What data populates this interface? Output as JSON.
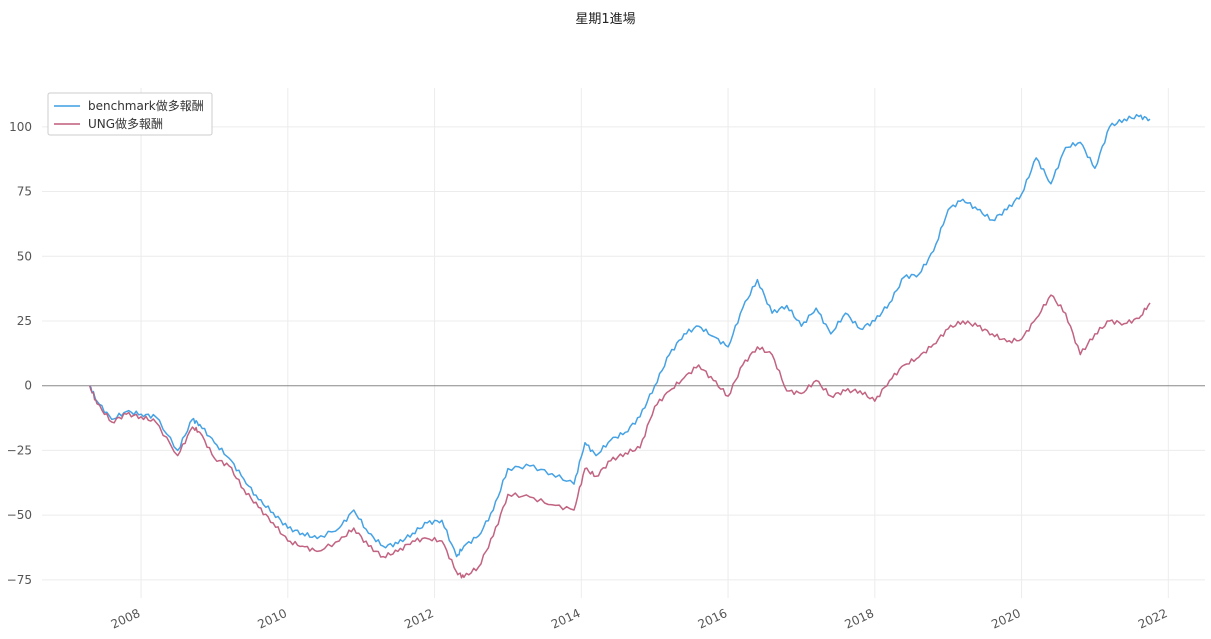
{
  "chart_data": {
    "type": "line",
    "title": "星期1進場",
    "xlabel": "",
    "ylabel": "",
    "xlim": [
      2006.65,
      2022.5
    ],
    "ylim": [
      -82,
      115
    ],
    "grid": true,
    "legend_position": "top-left",
    "x_ticks": [
      {
        "label": "2008",
        "value": 2008
      },
      {
        "label": "2010",
        "value": 2010
      },
      {
        "label": "2012",
        "value": 2012
      },
      {
        "label": "2014",
        "value": 2014
      },
      {
        "label": "2016",
        "value": 2016
      },
      {
        "label": "2018",
        "value": 2018
      },
      {
        "label": "2020",
        "value": 2020
      },
      {
        "label": "2022",
        "value": 2022
      }
    ],
    "y_ticks": [
      {
        "label": "100",
        "value": 100
      },
      {
        "label": "75",
        "value": 75
      },
      {
        "label": "50",
        "value": 50
      },
      {
        "label": "25",
        "value": 25
      },
      {
        "label": "0",
        "value": 0
      },
      {
        "label": "−25",
        "value": -25
      },
      {
        "label": "−50",
        "value": -50
      },
      {
        "label": "−75",
        "value": -75
      }
    ],
    "series": [
      {
        "name": "benchmark做多報酬",
        "color": "#3b9de3",
        "x": [
          2007.3,
          2007.4,
          2007.6,
          2007.8,
          2008.0,
          2008.2,
          2008.5,
          2008.7,
          2008.8,
          2009.0,
          2009.2,
          2009.4,
          2009.6,
          2009.8,
          2010.0,
          2010.2,
          2010.4,
          2010.7,
          2010.9,
          2011.1,
          2011.3,
          2011.5,
          2011.7,
          2011.9,
          2012.1,
          2012.3,
          2012.4,
          2012.6,
          2012.8,
          2013.0,
          2013.3,
          2013.6,
          2013.9,
          2014.05,
          2014.2,
          2014.4,
          2014.6,
          2014.8,
          2015.0,
          2015.2,
          2015.4,
          2015.6,
          2015.8,
          2016.0,
          2016.2,
          2016.4,
          2016.6,
          2016.8,
          2017.0,
          2017.2,
          2017.4,
          2017.6,
          2017.8,
          2018.0,
          2018.2,
          2018.4,
          2018.6,
          2018.8,
          2019.0,
          2019.2,
          2019.4,
          2019.6,
          2019.8,
          2020.0,
          2020.2,
          2020.4,
          2020.6,
          2020.8,
          2021.0,
          2021.2,
          2021.4,
          2021.6,
          2021.75
        ],
        "y": [
          0,
          -6,
          -13,
          -10,
          -11,
          -12,
          -25,
          -13,
          -15,
          -22,
          -28,
          -36,
          -44,
          -49,
          -55,
          -57,
          -59,
          -55,
          -48,
          -57,
          -62,
          -61,
          -57,
          -53,
          -52,
          -66,
          -62,
          -58,
          -48,
          -32,
          -31,
          -34,
          -38,
          -22,
          -27,
          -21,
          -18,
          -12,
          0,
          12,
          20,
          23,
          19,
          15,
          30,
          41,
          28,
          31,
          23,
          30,
          20,
          28,
          22,
          25,
          32,
          42,
          43,
          52,
          68,
          72,
          68,
          64,
          68,
          74,
          88,
          78,
          92,
          94,
          84,
          100,
          103,
          104,
          103
        ]
      },
      {
        "name": "UNG做多報酬",
        "color": "#bf5b7a",
        "x": [
          2007.3,
          2007.4,
          2007.6,
          2007.8,
          2008.0,
          2008.2,
          2008.5,
          2008.7,
          2008.8,
          2009.0,
          2009.2,
          2009.4,
          2009.6,
          2009.8,
          2010.0,
          2010.2,
          2010.4,
          2010.7,
          2010.9,
          2011.1,
          2011.3,
          2011.5,
          2011.7,
          2011.9,
          2012.1,
          2012.3,
          2012.4,
          2012.6,
          2012.8,
          2013.0,
          2013.3,
          2013.6,
          2013.9,
          2014.05,
          2014.2,
          2014.4,
          2014.6,
          2014.8,
          2015.0,
          2015.2,
          2015.4,
          2015.6,
          2015.8,
          2016.0,
          2016.2,
          2016.4,
          2016.6,
          2016.8,
          2017.0,
          2017.2,
          2017.4,
          2017.6,
          2017.8,
          2018.0,
          2018.2,
          2018.4,
          2018.6,
          2018.8,
          2019.0,
          2019.2,
          2019.4,
          2019.6,
          2019.8,
          2020.0,
          2020.2,
          2020.4,
          2020.6,
          2020.8,
          2021.0,
          2021.2,
          2021.4,
          2021.6,
          2021.75
        ],
        "y": [
          0,
          -7,
          -14,
          -11,
          -12,
          -14,
          -27,
          -16,
          -18,
          -28,
          -31,
          -40,
          -47,
          -53,
          -60,
          -62,
          -64,
          -60,
          -55,
          -62,
          -66,
          -64,
          -60,
          -59,
          -60,
          -72,
          -74,
          -70,
          -58,
          -42,
          -43,
          -46,
          -48,
          -32,
          -35,
          -29,
          -26,
          -24,
          -8,
          -2,
          3,
          8,
          2,
          -4,
          8,
          15,
          12,
          -2,
          -3,
          2,
          -4,
          -2,
          -2,
          -6,
          2,
          8,
          11,
          16,
          22,
          25,
          23,
          20,
          17,
          18,
          26,
          35,
          28,
          12,
          20,
          25,
          24,
          26,
          32
        ]
      }
    ]
  }
}
